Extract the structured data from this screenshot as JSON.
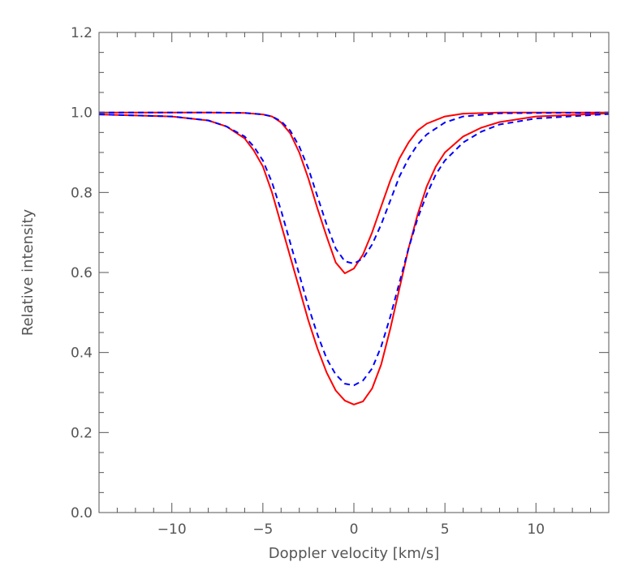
{
  "chart_data": {
    "type": "line",
    "xlabel": "Doppler velocity [km/s]",
    "ylabel": "Relative intensity",
    "xlim": [
      -14,
      14
    ],
    "ylim": [
      0.0,
      1.2
    ],
    "xticks": [
      -10,
      -5,
      0,
      5,
      10
    ],
    "xtick_labels": [
      "−10",
      "−5",
      "0",
      "5",
      "10"
    ],
    "yticks": [
      0.0,
      0.2,
      0.4,
      0.6,
      0.8,
      1.0,
      1.2
    ],
    "ytick_labels": [
      "0.0",
      "0.2",
      "0.4",
      "0.6",
      "0.8",
      "1.0",
      "1.2"
    ],
    "grid": false,
    "series": [
      {
        "style": "solid",
        "color": "#ff0000",
        "x": [
          -14,
          -8,
          -6,
          -5,
          -4.5,
          -4,
          -3.5,
          -3,
          -2.5,
          -2,
          -1.5,
          -1,
          -0.5,
          0,
          0.5,
          1,
          1.5,
          2,
          2.5,
          3,
          3.5,
          4,
          5,
          6,
          8,
          14
        ],
        "y": [
          1.0,
          1.0,
          0.999,
          0.995,
          0.99,
          0.975,
          0.948,
          0.9,
          0.835,
          0.76,
          0.69,
          0.625,
          0.598,
          0.61,
          0.645,
          0.7,
          0.765,
          0.83,
          0.885,
          0.925,
          0.955,
          0.972,
          0.99,
          0.997,
          1.0,
          1.0
        ]
      },
      {
        "style": "dashed",
        "color": "#0000ff",
        "x": [
          -14,
          -8,
          -6,
          -5,
          -4.5,
          -4,
          -3.5,
          -3,
          -2.5,
          -2,
          -1.5,
          -1,
          -0.5,
          0,
          0.5,
          1,
          1.5,
          2,
          2.5,
          3,
          3.5,
          4,
          5,
          6,
          8,
          14
        ],
        "y": [
          1.0,
          1.0,
          0.999,
          0.995,
          0.99,
          0.978,
          0.955,
          0.915,
          0.86,
          0.79,
          0.72,
          0.66,
          0.628,
          0.622,
          0.635,
          0.67,
          0.72,
          0.78,
          0.84,
          0.885,
          0.92,
          0.945,
          0.975,
          0.99,
          0.998,
          1.0
        ]
      },
      {
        "style": "solid",
        "color": "#ff0000",
        "x": [
          -14,
          -10,
          -8,
          -7,
          -6,
          -5.5,
          -5,
          -4.5,
          -4,
          -3.5,
          -3,
          -2.5,
          -2,
          -1.5,
          -1,
          -0.5,
          0,
          0.5,
          1,
          1.5,
          2,
          2.5,
          3,
          3.5,
          4,
          4.5,
          5,
          6,
          7,
          8,
          10,
          14
        ],
        "y": [
          0.995,
          0.99,
          0.98,
          0.965,
          0.935,
          0.905,
          0.865,
          0.8,
          0.72,
          0.64,
          0.56,
          0.48,
          0.41,
          0.35,
          0.305,
          0.28,
          0.27,
          0.278,
          0.31,
          0.37,
          0.46,
          0.56,
          0.66,
          0.745,
          0.815,
          0.865,
          0.9,
          0.94,
          0.962,
          0.976,
          0.99,
          0.998
        ]
      },
      {
        "style": "dashed",
        "color": "#0000ff",
        "x": [
          -14,
          -10,
          -8,
          -7,
          -6,
          -5.5,
          -5,
          -4.5,
          -4,
          -3.5,
          -3,
          -2.5,
          -2,
          -1.5,
          -1,
          -0.5,
          0,
          0.5,
          1,
          1.5,
          2,
          2.5,
          3,
          3.5,
          4,
          4.5,
          5,
          6,
          7,
          8,
          10,
          14
        ],
        "y": [
          0.995,
          0.99,
          0.98,
          0.965,
          0.94,
          0.915,
          0.88,
          0.825,
          0.755,
          0.675,
          0.595,
          0.515,
          0.445,
          0.385,
          0.345,
          0.322,
          0.318,
          0.33,
          0.36,
          0.415,
          0.49,
          0.575,
          0.66,
          0.735,
          0.795,
          0.845,
          0.88,
          0.925,
          0.952,
          0.97,
          0.985,
          0.996
        ]
      }
    ]
  }
}
